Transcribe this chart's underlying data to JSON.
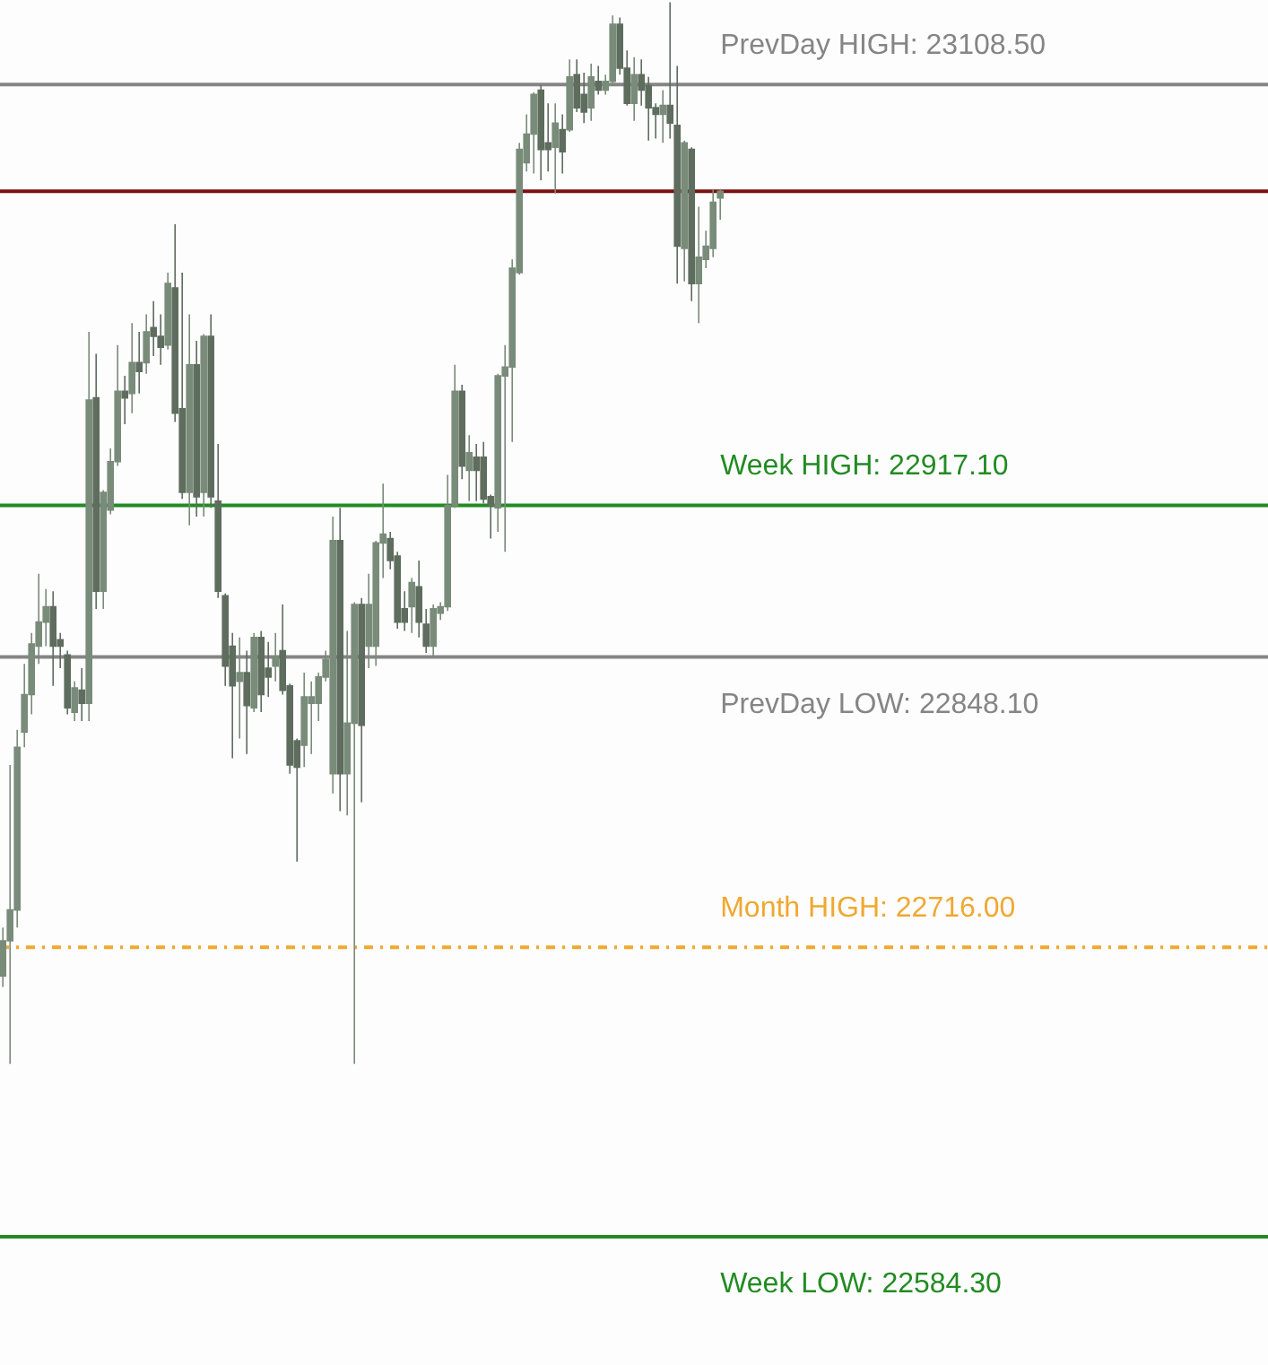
{
  "chart_data": {
    "type": "candlestick",
    "color": "#6b7b6b",
    "categories": [
      null,
      null,
      null,
      null,
      null,
      null,
      null,
      null,
      null,
      null,
      null,
      null,
      null,
      null,
      null,
      null,
      null,
      null,
      null,
      null,
      null,
      null,
      null,
      null,
      null,
      null,
      null,
      null,
      null,
      null,
      null,
      null,
      null,
      null,
      null,
      null,
      null,
      null,
      null,
      null,
      null,
      null,
      null,
      null,
      null,
      null,
      null,
      null,
      null,
      null,
      null,
      null,
      null,
      null,
      null,
      null,
      null,
      null,
      null,
      null,
      null,
      null,
      null,
      null,
      null,
      null,
      null,
      null,
      null,
      null,
      null,
      null,
      null,
      null,
      null,
      null,
      null,
      null,
      null,
      null,
      null,
      null,
      null,
      null,
      null,
      null,
      null,
      null,
      null,
      null,
      null,
      null,
      null,
      null,
      null,
      null,
      null,
      null,
      null,
      null,
      null
    ],
    "ohlc": [
      [
        22703,
        22725,
        22698,
        22719
      ],
      [
        22719,
        22799,
        22663,
        22733
      ],
      [
        22733,
        22815,
        22725,
        22807
      ],
      [
        22814,
        22845,
        22807,
        22831
      ],
      [
        22831,
        22859,
        22822,
        22854
      ],
      [
        22853,
        22886,
        22845,
        22864
      ],
      [
        22864,
        22879,
        22853,
        22871
      ],
      [
        22871,
        22878,
        22835,
        22853
      ],
      [
        22856,
        22859,
        22843,
        22853
      ],
      [
        22849,
        22851,
        22822,
        22825
      ],
      [
        22823,
        22837,
        22819,
        22834
      ],
      [
        22833,
        22843,
        22819,
        22827
      ],
      [
        22827,
        22996,
        22819,
        22965
      ],
      [
        22966,
        22986,
        22870,
        22878
      ],
      [
        22878,
        22924,
        22870,
        22923
      ],
      [
        22915,
        22943,
        22913,
        22937
      ],
      [
        22937,
        22990,
        22935,
        22969
      ],
      [
        22969,
        22976,
        22954,
        22966
      ],
      [
        22968,
        23000,
        22959,
        22982
      ],
      [
        22982,
        22996,
        22968,
        22978
      ],
      [
        22982,
        23004,
        22977,
        22996
      ],
      [
        22998,
        23010,
        22985,
        22994
      ],
      [
        22994,
        23004,
        22981,
        22989
      ],
      [
        22990,
        23023,
        22988,
        23018
      ],
      [
        23016,
        23045,
        22955,
        22959
      ],
      [
        22961,
        23023,
        22920,
        22923
      ],
      [
        22923,
        23004,
        22908,
        22981
      ],
      [
        22981,
        22992,
        22912,
        22921
      ],
      [
        22923,
        22995,
        22912,
        22994
      ],
      [
        22994,
        23004,
        22916,
        22921
      ],
      [
        22919,
        22945,
        22875,
        22878
      ],
      [
        22876,
        22877,
        22835,
        22844
      ],
      [
        22853,
        22859,
        22802,
        22835
      ],
      [
        22837,
        22857,
        22811,
        22841
      ],
      [
        22841,
        22851,
        22804,
        22826
      ],
      [
        22825,
        22859,
        22823,
        22857
      ],
      [
        22857,
        22860,
        22823,
        22831
      ],
      [
        22843,
        22855,
        22830,
        22839
      ],
      [
        22844,
        22859,
        22837,
        22848
      ],
      [
        22851,
        22872,
        22831,
        22833
      ],
      [
        22835,
        22836,
        22795,
        22799
      ],
      [
        22810,
        22811,
        22755,
        22798
      ],
      [
        22808,
        22841,
        22798,
        22830
      ],
      [
        22827,
        22837,
        22804,
        22830
      ],
      [
        22827,
        22841,
        22819,
        22839
      ],
      [
        22839,
        22851,
        22837,
        22847
      ],
      [
        22795,
        22912,
        22786,
        22901
      ],
      [
        22901,
        22916,
        22778,
        22795
      ],
      [
        22795,
        22860,
        22776,
        22818
      ],
      [
        22818,
        22873,
        22663,
        22872
      ],
      [
        22872,
        22875,
        22782,
        22817
      ],
      [
        22853,
        22886,
        22843,
        22872
      ],
      [
        22853,
        22901,
        22844,
        22900
      ],
      [
        22900,
        22927,
        22884,
        22904
      ],
      [
        22902,
        22905,
        22888,
        22892
      ],
      [
        22894,
        22896,
        22861,
        22864
      ],
      [
        22870,
        22878,
        22860,
        22864
      ],
      [
        22871,
        22884,
        22859,
        22882
      ],
      [
        22880,
        22892,
        22857,
        22864
      ],
      [
        22863,
        22870,
        22850,
        22853
      ],
      [
        22853,
        22872,
        22848,
        22870
      ],
      [
        22868,
        22873,
        22865,
        22871
      ],
      [
        22871,
        22931,
        22869,
        22917
      ],
      [
        22917,
        22981,
        22916,
        22969
      ],
      [
        22969,
        22972,
        22929,
        22935
      ],
      [
        22933,
        22949,
        22919,
        22941
      ],
      [
        22939,
        22945,
        22919,
        22933
      ],
      [
        22939,
        22946,
        22918,
        22920
      ],
      [
        22921,
        22922,
        22902,
        22917
      ],
      [
        22916,
        22977,
        22905,
        22976
      ],
      [
        22976,
        22990,
        22896,
        22980
      ],
      [
        22980,
        23029,
        22946,
        23025
      ],
      [
        23023,
        23082,
        23022,
        23079
      ],
      [
        23073,
        23095,
        23069,
        23086
      ],
      [
        23086,
        23105,
        23068,
        23104
      ],
      [
        23106,
        23108,
        23065,
        23079
      ],
      [
        23082,
        23100,
        23069,
        23079
      ],
      [
        23080,
        23100,
        23059,
        23091
      ],
      [
        23088,
        23095,
        23068,
        23078
      ],
      [
        23088,
        23120,
        23087,
        23112
      ],
      [
        23113,
        23120,
        23096,
        23098
      ],
      [
        23104,
        23114,
        23091,
        23096
      ],
      [
        23098,
        23118,
        23092,
        23112
      ],
      [
        23110,
        23117,
        23104,
        23106
      ],
      [
        23106,
        23113,
        23104,
        23110
      ],
      [
        23110,
        23140,
        23108,
        23136
      ],
      [
        23136,
        23139,
        23113,
        23116
      ],
      [
        23116,
        23124,
        23099,
        23100
      ],
      [
        23100,
        23121,
        23092,
        23113
      ],
      [
        23113,
        23120,
        23099,
        23106
      ],
      [
        23108,
        23112,
        23083,
        23098
      ],
      [
        23098,
        23100,
        23084,
        23095
      ],
      [
        23095,
        23106,
        23082,
        23099
      ],
      [
        23099,
        23146,
        23084,
        23091
      ],
      [
        23090,
        23117,
        23018,
        23035
      ],
      [
        23034,
        23083,
        23019,
        23082
      ],
      [
        23079,
        23080,
        23010,
        23018
      ],
      [
        23018,
        23053,
        23000,
        23030
      ],
      [
        23029,
        23042,
        23025,
        23035
      ],
      [
        23034,
        23061,
        23030,
        23055
      ],
      [
        23057,
        23061,
        23047,
        23060
      ]
    ],
    "ylim": [
      22526,
      23147
    ],
    "ref_lines": [
      {
        "axis": "y",
        "value": 23108.5,
        "label": "PrevDay HIGH: 23108.50",
        "color": "#858585"
      },
      {
        "axis": "y",
        "value": 23060,
        "color": "#7a1010"
      },
      {
        "axis": "y",
        "value": 22917.1,
        "label": "Week HIGH: 22917.10",
        "color": "#228b22"
      },
      {
        "axis": "y",
        "value": 22848.1,
        "label": "PrevDay LOW: 22848.10",
        "color": "#858585"
      },
      {
        "axis": "y",
        "value": 22716,
        "label": "Month HIGH: 22716.00",
        "color": "#f0a830",
        "line_style": "dashed"
      },
      {
        "axis": "y",
        "value": 22584.3,
        "label": "Week LOW: 22584.30",
        "color": "#228b22"
      }
    ]
  }
}
